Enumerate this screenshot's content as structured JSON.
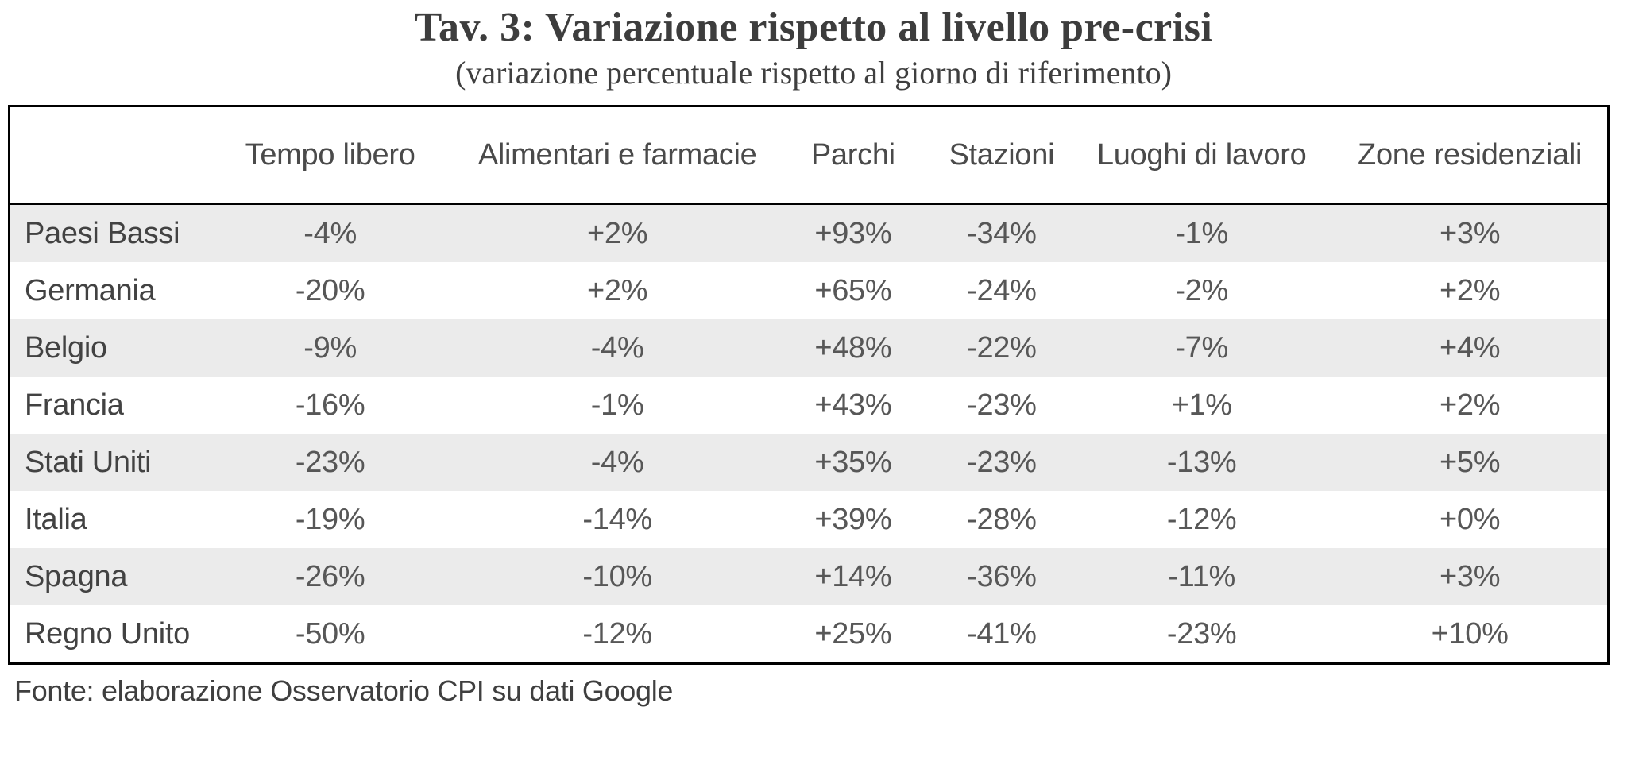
{
  "title": "Tav. 3: Variazione rispetto al livello pre-crisi",
  "subtitle": "(variazione percentuale rispetto al giorno di riferimento)",
  "source": "Fonte: elaborazione Osservatorio CPI su dati Google",
  "colors": {
    "band_row": "#ebebeb",
    "border": "#000000",
    "title_text": "#3d3d3d",
    "body_text": "#575757"
  },
  "chart_data": {
    "type": "table",
    "title": "Tav. 3: Variazione rispetto al livello pre-crisi",
    "subtitle": "(variazione percentuale rispetto al giorno di riferimento)",
    "source": "Fonte: elaborazione Osservatorio CPI su dati Google",
    "columns": [
      "",
      "Tempo libero",
      "Alimentari e farmacie",
      "Parchi",
      "Stazioni",
      "Luoghi di lavoro",
      "Zone residenziali"
    ],
    "rows": [
      {
        "label": "Paesi Bassi",
        "values": [
          "-4%",
          "+2%",
          "+93%",
          "-34%",
          "-1%",
          "+3%"
        ]
      },
      {
        "label": "Germania",
        "values": [
          "-20%",
          "+2%",
          "+65%",
          "-24%",
          "-2%",
          "+2%"
        ]
      },
      {
        "label": "Belgio",
        "values": [
          "-9%",
          "-4%",
          "+48%",
          "-22%",
          "-7%",
          "+4%"
        ]
      },
      {
        "label": "Francia",
        "values": [
          "-16%",
          "-1%",
          "+43%",
          "-23%",
          "+1%",
          "+2%"
        ]
      },
      {
        "label": "Stati Uniti",
        "values": [
          "-23%",
          "-4%",
          "+35%",
          "-23%",
          "-13%",
          "+5%"
        ]
      },
      {
        "label": "Italia",
        "values": [
          "-19%",
          "-14%",
          "+39%",
          "-28%",
          "-12%",
          "+0%"
        ]
      },
      {
        "label": "Spagna",
        "values": [
          "-26%",
          "-10%",
          "+14%",
          "-36%",
          "-11%",
          "+3%"
        ]
      },
      {
        "label": "Regno Unito",
        "values": [
          "-50%",
          "-12%",
          "+25%",
          "-41%",
          "-23%",
          "+10%"
        ]
      }
    ],
    "banded_row_indices": [
      0,
      2,
      4,
      6
    ]
  }
}
